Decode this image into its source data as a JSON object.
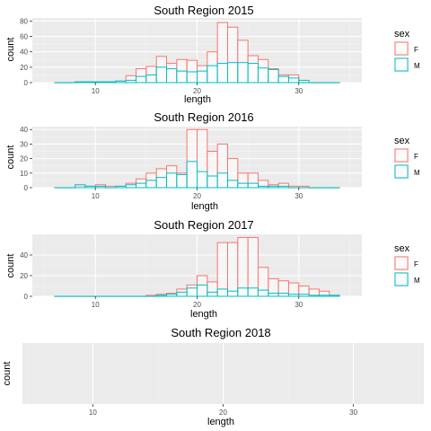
{
  "chart_data": [
    {
      "type": "histogram",
      "title": "South Region 2015",
      "xlabel": "length",
      "ylabel": "count",
      "xlim": [
        3.8,
        36.2
      ],
      "ylim": [
        0,
        84
      ],
      "xticks": [
        10,
        20,
        30
      ],
      "yticks": [
        0,
        20,
        40,
        60,
        80
      ],
      "grid": true,
      "legend": {
        "title": "sex",
        "placement": "right",
        "entries": [
          "F",
          "M"
        ]
      },
      "bins": {
        "start": 6,
        "width": 1
      },
      "series": [
        {
          "name": "F",
          "color": "#F8766D",
          "values": [
            0,
            0,
            1,
            1,
            1,
            1,
            2,
            9,
            18,
            21,
            34,
            25,
            30,
            29,
            22,
            40,
            78,
            72,
            55,
            35,
            30,
            18,
            10,
            10,
            0,
            0,
            0,
            0
          ]
        },
        {
          "name": "M",
          "color": "#00BFC4",
          "values": [
            0,
            0,
            1,
            1,
            1,
            1,
            2,
            3,
            8,
            10,
            20,
            18,
            15,
            14,
            15,
            22,
            25,
            26,
            26,
            25,
            19,
            17,
            8,
            6,
            3,
            0,
            0,
            0
          ]
        }
      ]
    },
    {
      "type": "histogram",
      "title": "South Region 2016",
      "xlabel": "length",
      "ylabel": "count",
      "xlim": [
        3.8,
        36.2
      ],
      "ylim": [
        0,
        42
      ],
      "xticks": [
        10,
        20,
        30
      ],
      "yticks": [
        0,
        10,
        20,
        30,
        40
      ],
      "grid": true,
      "legend": {
        "title": "sex",
        "placement": "right",
        "entries": [
          "F",
          "M"
        ]
      },
      "bins": {
        "start": 6,
        "width": 1
      },
      "series": [
        {
          "name": "F",
          "color": "#F8766D",
          "values": [
            0,
            0,
            1,
            1,
            2,
            1,
            1,
            3,
            6,
            10,
            13,
            15,
            10,
            40,
            40,
            25,
            30,
            20,
            10,
            10,
            5,
            2,
            3,
            1,
            1,
            0,
            0,
            0
          ]
        },
        {
          "name": "M",
          "color": "#00BFC4",
          "values": [
            0,
            0,
            2,
            1,
            1,
            0,
            1,
            2,
            3,
            5,
            7,
            10,
            9,
            18,
            11,
            8,
            10,
            5,
            3,
            3,
            1,
            1,
            1,
            0,
            0,
            0,
            0,
            0
          ]
        }
      ]
    },
    {
      "type": "histogram",
      "title": "South Region 2017",
      "xlabel": "length",
      "ylabel": "count",
      "xlim": [
        3.8,
        36.2
      ],
      "ylim": [
        0,
        60
      ],
      "xticks": [
        10,
        20,
        30
      ],
      "yticks": [
        0,
        20,
        40
      ],
      "grid": true,
      "legend": {
        "title": "sex",
        "placement": "right",
        "entries": [
          "F",
          "M"
        ]
      },
      "bins": {
        "start": 6,
        "width": 1
      },
      "series": [
        {
          "name": "F",
          "color": "#F8766D",
          "values": [
            0,
            0,
            0,
            0,
            0,
            0,
            0,
            0,
            0,
            1,
            2,
            3,
            7,
            11,
            20,
            14,
            52,
            52,
            57,
            57,
            28,
            17,
            15,
            13,
            10,
            7,
            5,
            1
          ]
        },
        {
          "name": "M",
          "color": "#00BFC4",
          "values": [
            0,
            0,
            0,
            0,
            0,
            0,
            0,
            0,
            0,
            0,
            1,
            2,
            4,
            8,
            11,
            4,
            7,
            5,
            8,
            8,
            6,
            3,
            3,
            2,
            2,
            1,
            1,
            1
          ]
        }
      ]
    },
    {
      "type": "histogram",
      "title": "South Region 2018",
      "xlabel": "length",
      "ylabel": "count",
      "xlim": [
        4.6,
        35.4
      ],
      "xticks": [
        10,
        20,
        30
      ],
      "yticks": [],
      "grid": true,
      "series": []
    }
  ]
}
